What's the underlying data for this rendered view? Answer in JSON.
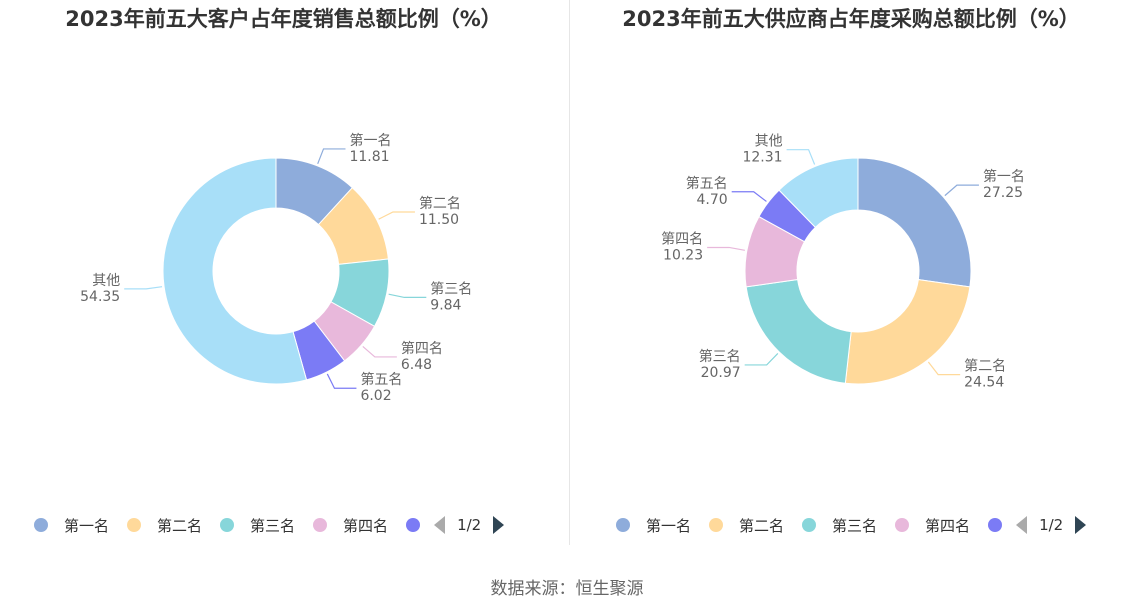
{
  "left_chart": {
    "title": "2023年前五大客户占年度销售总额比例（%）",
    "legend_page": "1/2"
  },
  "right_chart": {
    "title": "2023年前五大供应商占年度采购总额比例（%）",
    "legend_page": "1/2"
  },
  "legend_items": [
    "第一名",
    "第二名",
    "第三名",
    "第四名"
  ],
  "source_text": "数据来源：恒生聚源",
  "colors": {
    "第一名": "#8eacdb",
    "第二名": "#ffd99a",
    "第三名": "#87d6da",
    "第四名": "#e8b8db",
    "第五名": "#7b7bf5",
    "其他": "#a8dff8"
  },
  "chart_data": [
    {
      "type": "pie",
      "title": "2023年前五大客户占年度销售总额比例（%）",
      "labels": [
        "第一名",
        "第二名",
        "第三名",
        "第四名",
        "第五名",
        "其他"
      ],
      "values": [
        11.81,
        11.5,
        9.84,
        6.48,
        6.02,
        54.35
      ],
      "value_labels": [
        "11.81",
        "11.50",
        "9.84",
        "6.48",
        "6.02",
        "54.35"
      ],
      "legend": "bottom"
    },
    {
      "type": "pie",
      "title": "2023年前五大供应商占年度采购总额比例（%）",
      "labels": [
        "第一名",
        "第二名",
        "第三名",
        "第四名",
        "第五名",
        "其他"
      ],
      "values": [
        27.25,
        24.54,
        20.97,
        10.23,
        4.7,
        12.31
      ],
      "value_labels": [
        "27.25",
        "24.54",
        "20.97",
        "10.23",
        "4.70",
        "12.31"
      ],
      "legend": "bottom"
    }
  ]
}
